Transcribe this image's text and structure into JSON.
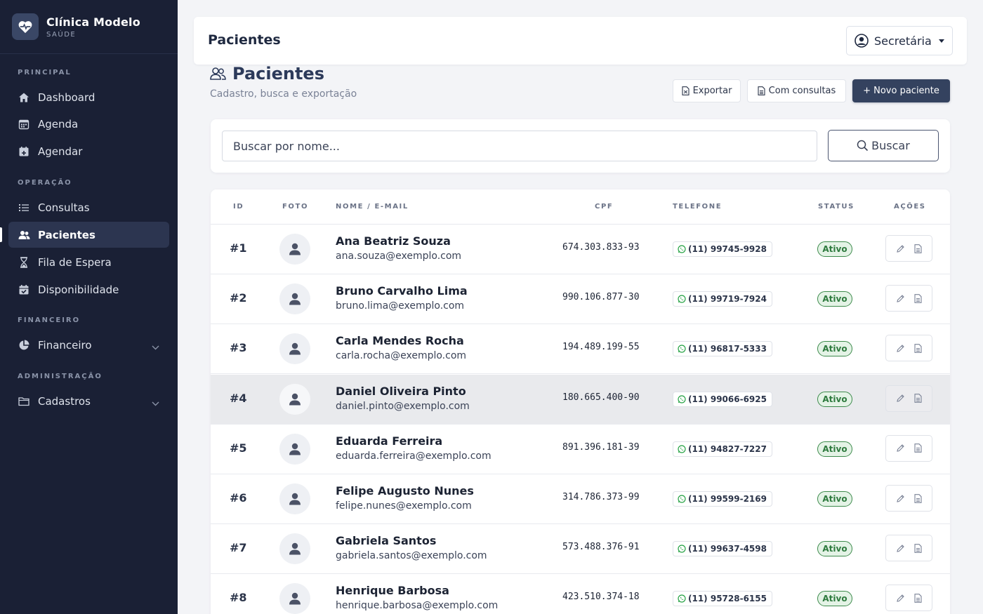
{
  "brand": {
    "name": "Clínica Modelo",
    "sub": "SAÚDE"
  },
  "sidebar": {
    "sections": [
      {
        "label": "PRINCIPAL"
      },
      {
        "label": "OPERAÇÃO"
      },
      {
        "label": "FINANCEIRO"
      },
      {
        "label": "ADMINISTRAÇÃO"
      }
    ],
    "items": [
      {
        "label": "Dashboard",
        "icon": "home-icon"
      },
      {
        "label": "Agenda",
        "icon": "calendar-icon"
      },
      {
        "label": "Agendar",
        "icon": "calendar-add-icon"
      },
      {
        "label": "Consultas",
        "icon": "list-icon"
      },
      {
        "label": "Pacientes",
        "icon": "users-icon",
        "active": true
      },
      {
        "label": "Fila de Espera",
        "icon": "hourglass-icon"
      },
      {
        "label": "Disponibilidade",
        "icon": "calendar-check-icon"
      },
      {
        "label": "Financeiro",
        "icon": "pie-chart-icon",
        "expandable": true
      },
      {
        "label": "Cadastros",
        "icon": "folder-icon",
        "expandable": true
      }
    ]
  },
  "topbar": {
    "title": "Pacientes",
    "user": "Secretária"
  },
  "page": {
    "title": "Pacientes",
    "subtitle": "Cadastro, busca e exportação",
    "export_label": "Exportar",
    "with_appointments_label": "Com consultas",
    "new_patient_label": "+ Novo paciente"
  },
  "search": {
    "placeholder": "Buscar por nome...",
    "button_label": "Buscar"
  },
  "table": {
    "headers": {
      "id": "ID",
      "photo": "FOTO",
      "name": "NOME / E-MAIL",
      "cpf": "CPF",
      "phone": "TELEFONE",
      "status": "STATUS",
      "actions": "AÇÕES"
    },
    "rows": [
      {
        "id": "#1",
        "name": "Ana Beatriz Souza",
        "email": "ana.souza@exemplo.com",
        "cpf": "674.303.833-93",
        "phone": "(11) 99745-9928",
        "status": "Ativo"
      },
      {
        "id": "#2",
        "name": "Bruno Carvalho Lima",
        "email": "bruno.lima@exemplo.com",
        "cpf": "990.106.877-30",
        "phone": "(11) 99719-7924",
        "status": "Ativo"
      },
      {
        "id": "#3",
        "name": "Carla Mendes Rocha",
        "email": "carla.rocha@exemplo.com",
        "cpf": "194.489.199-55",
        "phone": "(11) 96817-5333",
        "status": "Ativo"
      },
      {
        "id": "#4",
        "name": "Daniel Oliveira Pinto",
        "email": "daniel.pinto@exemplo.com",
        "cpf": "180.665.400-90",
        "phone": "(11) 99066-6925",
        "status": "Ativo",
        "hover": true
      },
      {
        "id": "#5",
        "name": "Eduarda Ferreira",
        "email": "eduarda.ferreira@exemplo.com",
        "cpf": "891.396.181-39",
        "phone": "(11) 94827-7227",
        "status": "Ativo"
      },
      {
        "id": "#6",
        "name": "Felipe Augusto Nunes",
        "email": "felipe.nunes@exemplo.com",
        "cpf": "314.786.373-99",
        "phone": "(11) 99599-2169",
        "status": "Ativo"
      },
      {
        "id": "#7",
        "name": "Gabriela Santos",
        "email": "gabriela.santos@exemplo.com",
        "cpf": "573.488.376-91",
        "phone": "(11) 99637-4598",
        "status": "Ativo"
      },
      {
        "id": "#8",
        "name": "Henrique Barbosa",
        "email": "henrique.barbosa@exemplo.com",
        "cpf": "423.510.374-18",
        "phone": "(11) 95728-6155",
        "status": "Ativo"
      }
    ]
  },
  "colors": {
    "sidebar_bg": "#1a2035",
    "primary": "#34425f",
    "status_green": "#2e7a3e",
    "whatsapp": "#25a244"
  }
}
